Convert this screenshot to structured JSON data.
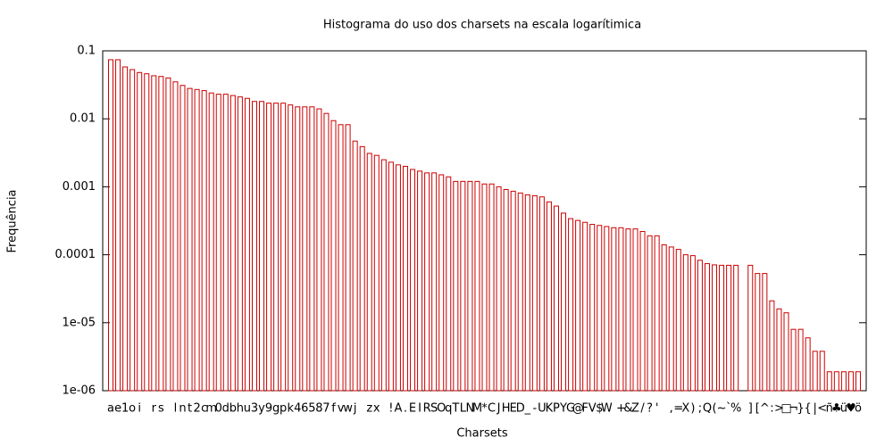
{
  "chart_data": {
    "type": "bar",
    "title": "Histograma do uso dos charsets na escala logarítimica",
    "x_label": "Charsets",
    "y_label": "Frequência",
    "color": "#cc0000",
    "log_scale": true,
    "ylim": [
      1e-06,
      0.1
    ],
    "yticks": [
      0.1,
      0.01,
      0.001,
      0.0001,
      {
        "value": 1e-05,
        "label": "1e-05"
      },
      {
        "value": 1e-06,
        "label": "1e-06"
      }
    ],
    "categories": [
      "a",
      "e",
      "1",
      "o",
      "i",
      " ",
      "r",
      "s",
      " ",
      "l",
      "n",
      "t",
      "2",
      "c",
      "m",
      "0",
      "d",
      "b",
      "h",
      "u",
      "3",
      "y",
      "9",
      "g",
      "p",
      "k",
      "4",
      "6",
      "5",
      "8",
      "7",
      "f",
      "v",
      "w",
      "j",
      " ",
      "z",
      "x",
      " ",
      "!",
      "A",
      ".",
      "E",
      "I",
      "R",
      "S",
      "O",
      "q",
      "T",
      "L",
      "N",
      "M",
      "*",
      "C",
      "J",
      "H",
      "E",
      "D",
      "_",
      "-",
      "U",
      "K",
      "P",
      "Y",
      "G",
      "@",
      "F",
      "V",
      "$",
      "W",
      " ",
      "+",
      "&",
      "Z",
      "/",
      "?",
      "'",
      " ",
      ",",
      "=",
      "X",
      ")",
      ";",
      "Q",
      "(",
      "~",
      "`",
      "%",
      " ",
      "]",
      "[",
      "^",
      ":",
      ">",
      "□",
      "¬",
      "}",
      "{",
      "|",
      "<",
      "ñ",
      "♣",
      "ü",
      "♥",
      "ö"
    ],
    "values": [
      0.074,
      0.074,
      0.058,
      0.053,
      0.048,
      0.046,
      0.043,
      0.042,
      0.04,
      0.035,
      0.031,
      0.028,
      0.027,
      0.026,
      0.024,
      0.023,
      0.023,
      0.022,
      0.021,
      0.02,
      0.018,
      0.018,
      0.017,
      0.017,
      0.017,
      0.016,
      0.015,
      0.015,
      0.015,
      0.014,
      0.012,
      0.0094,
      0.0082,
      0.0082,
      0.0047,
      0.0039,
      0.0031,
      0.0029,
      0.0025,
      0.0023,
      0.0021,
      0.002,
      0.0018,
      0.0017,
      0.0016,
      0.0016,
      0.0015,
      0.0014,
      0.0012,
      0.0012,
      0.0012,
      0.0012,
      0.0011,
      0.0011,
      0.001,
      0.00091,
      0.00086,
      0.00081,
      0.00076,
      0.00074,
      0.00071,
      0.0006,
      0.00052,
      0.00041,
      0.00034,
      0.00032,
      0.0003,
      0.00028,
      0.00027,
      0.00026,
      0.00025,
      0.00025,
      0.00024,
      0.00024,
      0.00022,
      0.00019,
      0.00019,
      0.00014,
      0.00013,
      0.00012,
      0.0001,
      9.7e-05,
      8.3e-05,
      7.4e-05,
      7.1e-05,
      7e-05,
      7e-05,
      7e-05,
      null,
      7e-05,
      5.3e-05,
      5.3e-05,
      2.1e-05,
      1.6e-05,
      1.4e-05,
      8e-06,
      8e-06,
      6e-06,
      3.8e-06,
      3.8e-06,
      1.9e-06,
      1.9e-06,
      1.9e-06,
      1.9e-06,
      1.9e-06
    ]
  }
}
